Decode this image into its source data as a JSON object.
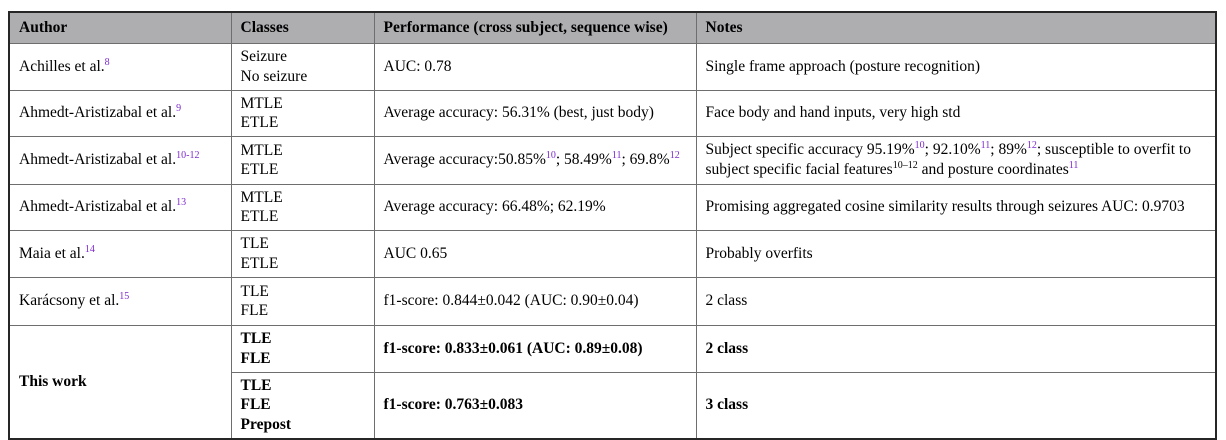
{
  "colors": {
    "header_background": "#aeaeb1",
    "citation_link": "#7d2bce",
    "text": "#000000",
    "border_outer": "#262626",
    "border_inner": "#6e6e6e"
  },
  "table": {
    "columns": [
      {
        "label": "Author"
      },
      {
        "label": "Classes"
      },
      {
        "label": "Performance (cross subject, sequence wise)"
      },
      {
        "label": "Notes"
      }
    ],
    "rows": [
      {
        "bold": false,
        "author": [
          {
            "t": "Achilles et al."
          },
          {
            "sup": "8",
            "purple": true
          }
        ],
        "classes": [
          "Seizure",
          "No seizure"
        ],
        "performance": [
          {
            "t": "AUC: 0.78"
          }
        ],
        "notes": [
          {
            "t": "Single frame approach (posture recognition)"
          }
        ]
      },
      {
        "bold": false,
        "author": [
          {
            "t": "Ahmedt-Aristizabal et al."
          },
          {
            "sup": "9",
            "purple": true
          }
        ],
        "classes": [
          "MTLE",
          "ETLE"
        ],
        "performance": [
          {
            "t": "Average accuracy: 56.31% (best, just body)"
          }
        ],
        "notes": [
          {
            "t": "Face body and hand inputs, very high std"
          }
        ]
      },
      {
        "bold": false,
        "author": [
          {
            "t": "Ahmedt-Aristizabal et al."
          },
          {
            "sup": "10-12",
            "purple": true
          }
        ],
        "classes": [
          "MTLE",
          "ETLE"
        ],
        "performance": [
          {
            "t": "Average accuracy:50.85%"
          },
          {
            "sup": "10",
            "purple": true
          },
          {
            "t": "; 58.49%"
          },
          {
            "sup": "11",
            "purple": true
          },
          {
            "t": "; 69.8%"
          },
          {
            "sup": "12",
            "purple": true
          }
        ],
        "notes": [
          {
            "t": "Subject specific accuracy 95.19%"
          },
          {
            "sup": "10",
            "purple": true
          },
          {
            "t": "; 92.10%"
          },
          {
            "sup": "11",
            "purple": true
          },
          {
            "t": "; 89%"
          },
          {
            "sup": "12",
            "purple": true
          },
          {
            "t": "; susceptible to overfit to subject specific facial features"
          },
          {
            "sup": "10–12",
            "purple": false
          },
          {
            "t": " and posture coordinates"
          },
          {
            "sup": "11",
            "purple": true
          }
        ]
      },
      {
        "bold": false,
        "author": [
          {
            "t": "Ahmedt-Aristizabal et al."
          },
          {
            "sup": "13",
            "purple": true
          }
        ],
        "classes": [
          "MTLE",
          "ETLE"
        ],
        "performance": [
          {
            "t": "Average accuracy: 66.48%; 62.19%"
          }
        ],
        "notes": [
          {
            "t": "Promising aggregated cosine similarity results through seizures AUC: 0.9703"
          }
        ]
      },
      {
        "bold": false,
        "author": [
          {
            "t": "Maia et al."
          },
          {
            "sup": "14",
            "purple": true
          }
        ],
        "classes": [
          "TLE",
          "ETLE"
        ],
        "performance": [
          {
            "t": "AUC 0.65"
          }
        ],
        "notes": [
          {
            "t": "Probably overfits"
          }
        ]
      },
      {
        "bold": false,
        "author": [
          {
            "t": "Karácsony et al."
          },
          {
            "sup": "15",
            "purple": true
          }
        ],
        "classes": [
          "TLE",
          "FLE"
        ],
        "performance": [
          {
            "t": "f1-score: 0.844±0.042 (AUC: 0.90±0.04)"
          }
        ],
        "notes": [
          {
            "t": "2 class"
          }
        ]
      },
      {
        "bold": true,
        "author": [
          {
            "t": "This work"
          }
        ],
        "author_rowspan": 2,
        "classes": [
          "TLE",
          "FLE"
        ],
        "performance": [
          {
            "t": "f1-score: 0.833±0.061 (AUC: 0.89±0.08)"
          }
        ],
        "notes": [
          {
            "t": "2 class"
          }
        ]
      },
      {
        "bold": true,
        "author": null,
        "classes": [
          "TLE",
          "FLE",
          "Prepost"
        ],
        "performance": [
          {
            "t": "f1-score: 0.763±0.083"
          }
        ],
        "notes": [
          {
            "t": "3 class"
          }
        ]
      }
    ]
  }
}
